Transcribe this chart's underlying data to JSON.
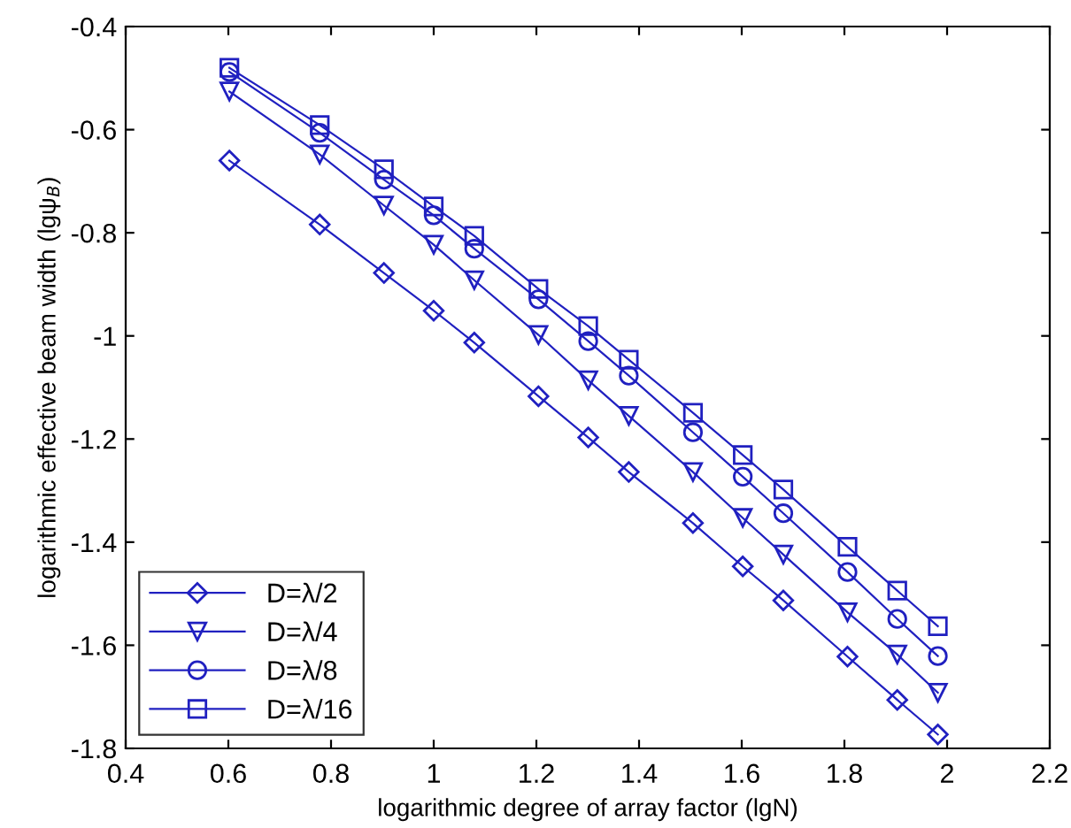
{
  "chart_data": {
    "type": "line",
    "xlabel": "logarithmic degree of array factor (lgN)",
    "ylabel": "logarithmic effective beam width (lgψ$_{B}$)",
    "x": [
      0.602,
      0.778,
      0.903,
      1.0,
      1.079,
      1.204,
      1.301,
      1.38,
      1.505,
      1.602,
      1.681,
      1.806,
      1.903,
      1.982
    ],
    "series": [
      {
        "name": "D=λ/2",
        "color": "#2020c0",
        "marker": "diamond",
        "values": [
          -0.66,
          -0.784,
          -0.878,
          -0.951,
          -1.013,
          -1.117,
          -1.197,
          -1.264,
          -1.363,
          -1.447,
          -1.513,
          -1.622,
          -1.706,
          -1.773
        ]
      },
      {
        "name": "D=λ/4",
        "color": "#2020c0",
        "marker": "triangle",
        "values": [
          -0.526,
          -0.648,
          -0.747,
          -0.823,
          -0.892,
          -0.998,
          -1.086,
          -1.155,
          -1.264,
          -1.353,
          -1.424,
          -1.536,
          -1.618,
          -1.692
        ]
      },
      {
        "name": "D=λ/8",
        "color": "#2020c0",
        "marker": "circle",
        "values": [
          -0.488,
          -0.606,
          -0.697,
          -0.766,
          -0.831,
          -0.929,
          -1.01,
          -1.077,
          -1.187,
          -1.273,
          -1.344,
          -1.458,
          -1.549,
          -1.621
        ]
      },
      {
        "name": "D=λ/16",
        "color": "#2020c0",
        "marker": "square",
        "values": [
          -0.48,
          -0.591,
          -0.677,
          -0.749,
          -0.806,
          -0.909,
          -0.981,
          -1.046,
          -1.149,
          -1.231,
          -1.298,
          -1.409,
          -1.494,
          -1.563
        ]
      }
    ],
    "xlim": [
      0.4,
      2.2
    ],
    "xticks": [
      0.4,
      0.6,
      0.8,
      1,
      1.2,
      1.4,
      1.6,
      1.8,
      2,
      2.2
    ],
    "ylim": [
      -1.8,
      -0.4
    ],
    "yticks": [
      -1.8,
      -1.6,
      -1.4,
      -1.2,
      -1,
      -0.8,
      -0.6,
      -0.4
    ],
    "grid": false,
    "legend": "bottom left",
    "line_style": "solid"
  }
}
